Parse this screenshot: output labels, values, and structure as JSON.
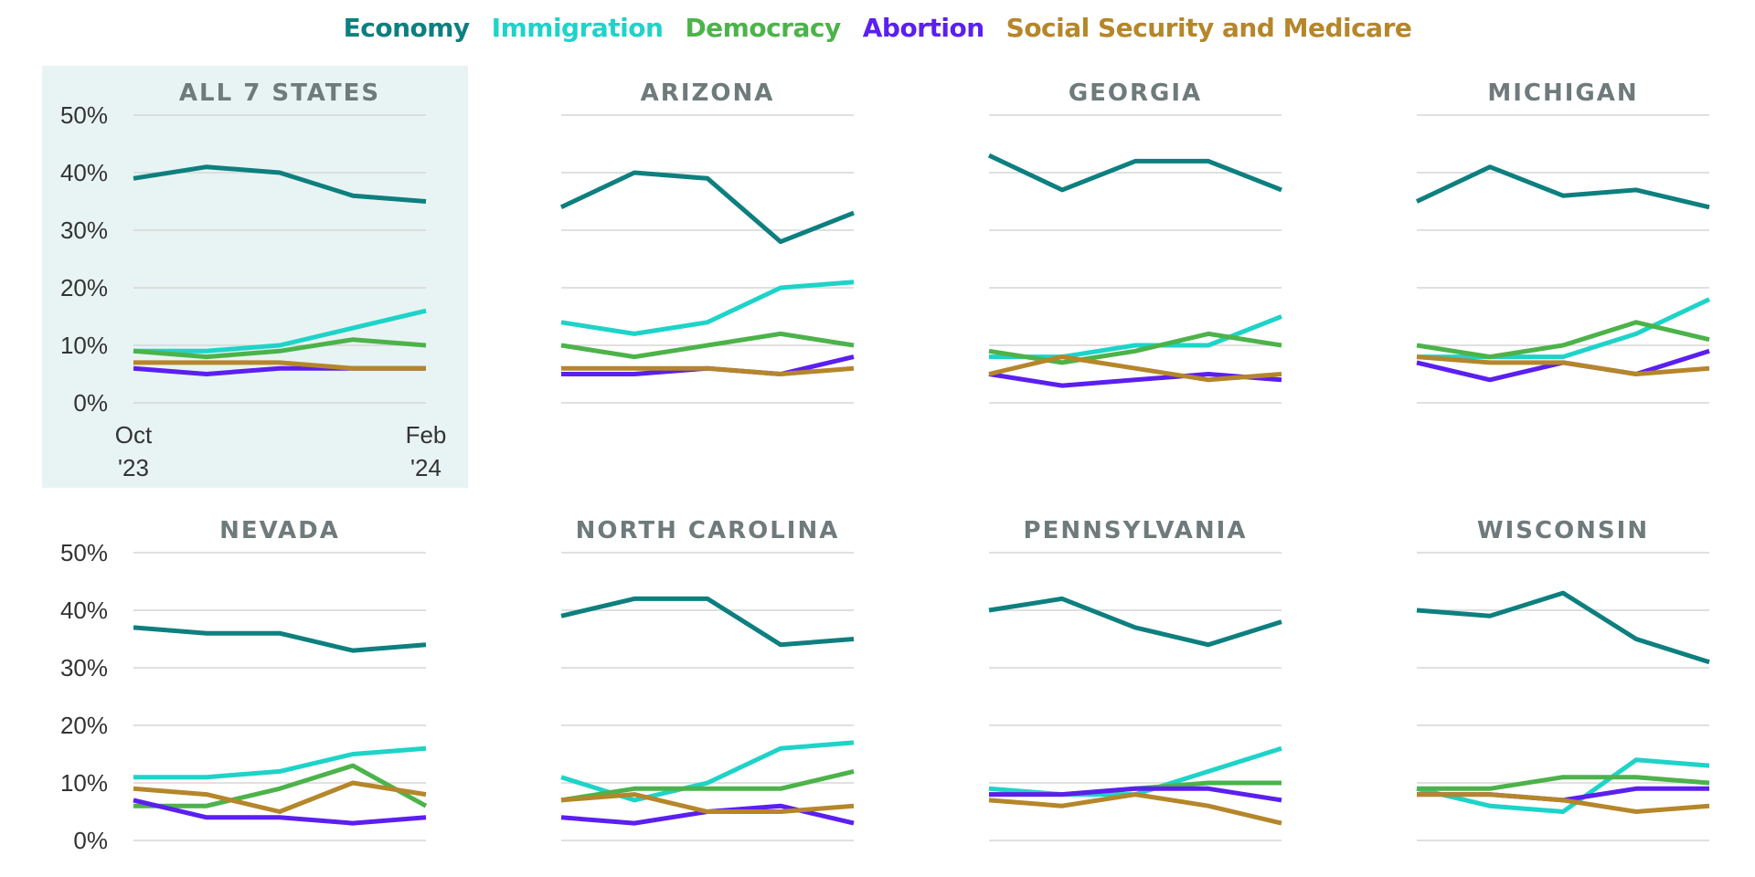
{
  "legend": [
    {
      "name": "Economy",
      "color": "#0e7f7f"
    },
    {
      "name": "Immigration",
      "color": "#1ed3c8"
    },
    {
      "name": "Democracy",
      "color": "#4cb34a"
    },
    {
      "name": "Abortion",
      "color": "#5b1ff0"
    },
    {
      "name": "Social Security and Medicare",
      "color": "#b5862a"
    }
  ],
  "chart_data": [
    {
      "type": "line",
      "title": "ALL 7 STATES",
      "highlighted": true,
      "ylim": [
        0,
        50
      ],
      "yticks": [
        "0%",
        "10%",
        "20%",
        "30%",
        "40%",
        "50%"
      ],
      "xticks": [
        "Oct\n'23",
        "Feb\n'24"
      ],
      "series": [
        {
          "name": "Economy",
          "values": [
            39,
            41,
            40,
            36,
            35
          ]
        },
        {
          "name": "Immigration",
          "values": [
            9,
            9,
            10,
            13,
            16
          ]
        },
        {
          "name": "Democracy",
          "values": [
            9,
            8,
            9,
            11,
            10
          ]
        },
        {
          "name": "Abortion",
          "values": [
            6,
            5,
            6,
            6,
            6
          ]
        },
        {
          "name": "Social Security and Medicare",
          "values": [
            7,
            7,
            7,
            6,
            6
          ]
        }
      ]
    },
    {
      "type": "line",
      "title": "ARIZONA",
      "ylim": [
        0,
        50
      ],
      "series": [
        {
          "name": "Economy",
          "values": [
            34,
            40,
            39,
            28,
            33
          ]
        },
        {
          "name": "Immigration",
          "values": [
            14,
            12,
            14,
            20,
            21
          ]
        },
        {
          "name": "Democracy",
          "values": [
            10,
            8,
            10,
            12,
            10
          ]
        },
        {
          "name": "Abortion",
          "values": [
            5,
            5,
            6,
            5,
            8
          ]
        },
        {
          "name": "Social Security and Medicare",
          "values": [
            6,
            6,
            6,
            5,
            6
          ]
        }
      ]
    },
    {
      "type": "line",
      "title": "GEORGIA",
      "ylim": [
        0,
        50
      ],
      "series": [
        {
          "name": "Economy",
          "values": [
            43,
            37,
            42,
            42,
            37
          ]
        },
        {
          "name": "Immigration",
          "values": [
            8,
            8,
            10,
            10,
            15
          ]
        },
        {
          "name": "Democracy",
          "values": [
            9,
            7,
            9,
            12,
            10
          ]
        },
        {
          "name": "Abortion",
          "values": [
            5,
            3,
            4,
            5,
            4
          ]
        },
        {
          "name": "Social Security and Medicare",
          "values": [
            5,
            8,
            6,
            4,
            5
          ]
        }
      ]
    },
    {
      "type": "line",
      "title": "MICHIGAN",
      "ylim": [
        0,
        50
      ],
      "series": [
        {
          "name": "Economy",
          "values": [
            35,
            41,
            36,
            37,
            34
          ]
        },
        {
          "name": "Immigration",
          "values": [
            8,
            8,
            8,
            12,
            18
          ]
        },
        {
          "name": "Democracy",
          "values": [
            10,
            8,
            10,
            14,
            11
          ]
        },
        {
          "name": "Abortion",
          "values": [
            7,
            4,
            7,
            5,
            9
          ]
        },
        {
          "name": "Social Security and Medicare",
          "values": [
            8,
            7,
            7,
            5,
            6
          ]
        }
      ]
    },
    {
      "type": "line",
      "title": "NEVADA",
      "ylim": [
        0,
        50
      ],
      "yticks": [
        "0%",
        "10%",
        "20%",
        "30%",
        "40%",
        "50%"
      ],
      "series": [
        {
          "name": "Economy",
          "values": [
            37,
            36,
            36,
            33,
            34
          ]
        },
        {
          "name": "Immigration",
          "values": [
            11,
            11,
            12,
            15,
            16
          ]
        },
        {
          "name": "Democracy",
          "values": [
            6,
            6,
            9,
            13,
            6
          ]
        },
        {
          "name": "Abortion",
          "values": [
            7,
            4,
            4,
            3,
            4
          ]
        },
        {
          "name": "Social Security and Medicare",
          "values": [
            9,
            8,
            5,
            10,
            8
          ]
        }
      ]
    },
    {
      "type": "line",
      "title": "NORTH CAROLINA",
      "ylim": [
        0,
        50
      ],
      "series": [
        {
          "name": "Economy",
          "values": [
            39,
            42,
            42,
            34,
            35
          ]
        },
        {
          "name": "Immigration",
          "values": [
            11,
            7,
            10,
            16,
            17
          ]
        },
        {
          "name": "Democracy",
          "values": [
            7,
            9,
            9,
            9,
            12
          ]
        },
        {
          "name": "Abortion",
          "values": [
            4,
            3,
            5,
            6,
            3
          ]
        },
        {
          "name": "Social Security and Medicare",
          "values": [
            7,
            8,
            5,
            5,
            6
          ]
        }
      ]
    },
    {
      "type": "line",
      "title": "PENNSYLVANIA",
      "ylim": [
        0,
        50
      ],
      "series": [
        {
          "name": "Economy",
          "values": [
            40,
            42,
            37,
            34,
            38
          ]
        },
        {
          "name": "Immigration",
          "values": [
            9,
            8,
            8,
            12,
            16
          ]
        },
        {
          "name": "Democracy",
          "values": [
            8,
            8,
            9,
            10,
            10
          ]
        },
        {
          "name": "Abortion",
          "values": [
            8,
            8,
            9,
            9,
            7
          ]
        },
        {
          "name": "Social Security and Medicare",
          "values": [
            7,
            6,
            8,
            6,
            3
          ]
        }
      ]
    },
    {
      "type": "line",
      "title": "WISCONSIN",
      "ylim": [
        0,
        50
      ],
      "series": [
        {
          "name": "Economy",
          "values": [
            40,
            39,
            43,
            35,
            31
          ]
        },
        {
          "name": "Immigration",
          "values": [
            9,
            6,
            5,
            14,
            13
          ]
        },
        {
          "name": "Democracy",
          "values": [
            9,
            9,
            11,
            11,
            10
          ]
        },
        {
          "name": "Abortion",
          "values": [
            8,
            8,
            7,
            9,
            9
          ]
        },
        {
          "name": "Social Security and Medicare",
          "values": [
            8,
            8,
            7,
            5,
            6
          ]
        }
      ]
    }
  ]
}
